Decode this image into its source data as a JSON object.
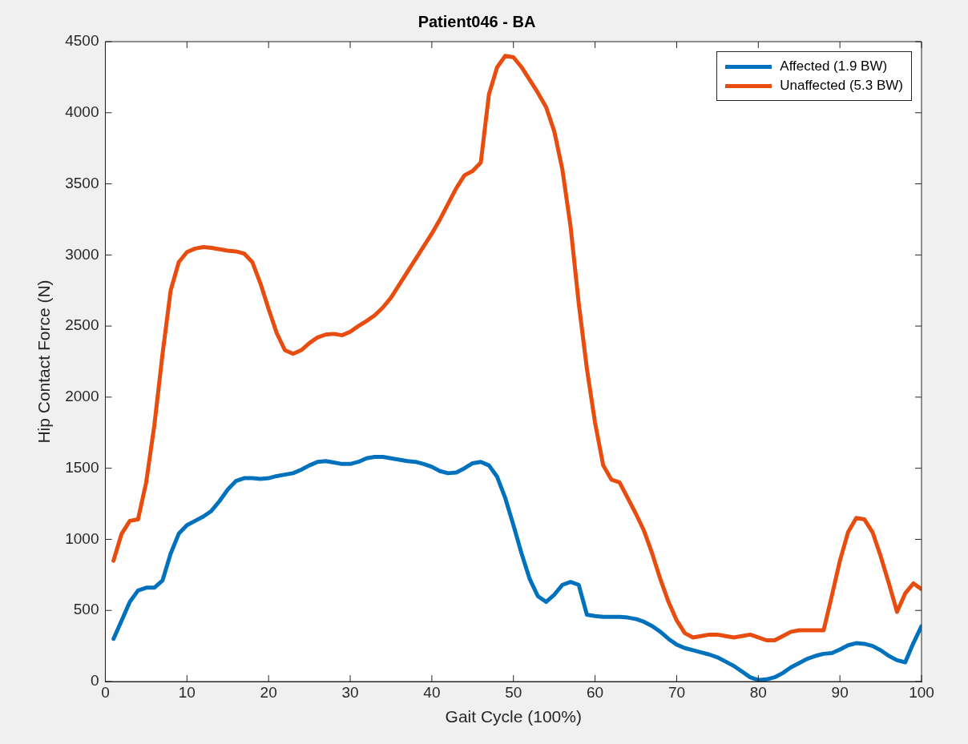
{
  "chart_data": {
    "type": "line",
    "title": "Patient046 - BA",
    "xlabel": "Gait Cycle (100%)",
    "ylabel": "Hip Contact Force (N)",
    "x": [
      1,
      2,
      3,
      4,
      5,
      6,
      7,
      8,
      9,
      10,
      11,
      12,
      13,
      14,
      15,
      16,
      17,
      18,
      19,
      20,
      21,
      22,
      23,
      24,
      25,
      26,
      27,
      28,
      29,
      30,
      31,
      32,
      33,
      34,
      35,
      36,
      37,
      38,
      39,
      40,
      41,
      42,
      43,
      44,
      45,
      46,
      47,
      48,
      49,
      50,
      51,
      52,
      53,
      54,
      55,
      56,
      57,
      58,
      59,
      60,
      61,
      62,
      63,
      64,
      65,
      66,
      67,
      68,
      69,
      70,
      71,
      72,
      73,
      74,
      75,
      76,
      77,
      78,
      79,
      80,
      81,
      82,
      83,
      84,
      85,
      86,
      87,
      88,
      89,
      90,
      91,
      92,
      93,
      94,
      95,
      96,
      97,
      98,
      99,
      100
    ],
    "series": [
      {
        "name": "Affected (1.9 BW)",
        "color": "#0072bd",
        "values": [
          300,
          430,
          560,
          640,
          660,
          660,
          710,
          900,
          1040,
          1100,
          1130,
          1160,
          1200,
          1270,
          1350,
          1410,
          1430,
          1430,
          1425,
          1430,
          1445,
          1455,
          1465,
          1490,
          1520,
          1545,
          1550,
          1540,
          1530,
          1530,
          1545,
          1570,
          1580,
          1580,
          1570,
          1560,
          1550,
          1545,
          1530,
          1510,
          1480,
          1465,
          1470,
          1500,
          1535,
          1545,
          1520,
          1440,
          1290,
          1100,
          900,
          720,
          600,
          560,
          610,
          680,
          700,
          680,
          470,
          460,
          455,
          455,
          455,
          450,
          440,
          420,
          390,
          350,
          300,
          260,
          235,
          220,
          205,
          190,
          170,
          140,
          110,
          70,
          30,
          10,
          15,
          30,
          60,
          100,
          130,
          160,
          180,
          195,
          200,
          225,
          255,
          270,
          265,
          250,
          220,
          180,
          150,
          135,
          270,
          390
        ]
      },
      {
        "name": "Unaffected (5.3 BW)",
        "color": "#e84c0e",
        "values": [
          850,
          1040,
          1130,
          1140,
          1400,
          1800,
          2300,
          2750,
          2950,
          3020,
          3045,
          3055,
          3050,
          3040,
          3030,
          3025,
          3010,
          2950,
          2800,
          2620,
          2450,
          2330,
          2305,
          2330,
          2380,
          2420,
          2440,
          2445,
          2435,
          2460,
          2500,
          2535,
          2575,
          2630,
          2700,
          2790,
          2880,
          2970,
          3060,
          3150,
          3250,
          3360,
          3470,
          3560,
          3590,
          3650,
          4130,
          4320,
          4400,
          4390,
          4320,
          4230,
          4140,
          4040,
          3870,
          3600,
          3200,
          2660,
          2200,
          1820,
          1520,
          1420,
          1400,
          1290,
          1180,
          1060,
          900,
          720,
          560,
          430,
          340,
          310,
          320,
          330,
          330,
          320,
          310,
          320,
          330,
          310,
          290,
          290,
          320,
          350,
          360,
          360,
          360,
          360,
          600,
          850,
          1050,
          1150,
          1140,
          1050,
          880,
          690,
          490,
          620,
          690,
          650
        ]
      }
    ],
    "xlim": [
      0,
      100
    ],
    "xticks": [
      0,
      10,
      20,
      30,
      40,
      50,
      60,
      70,
      80,
      90,
      100
    ],
    "ylim": [
      0,
      4500
    ],
    "yticks": [
      0,
      500,
      1000,
      1500,
      2000,
      2500,
      3000,
      3500,
      4000,
      4500
    ],
    "grid": false,
    "legend": "top right",
    "marker": "none",
    "line_style": "solid"
  }
}
